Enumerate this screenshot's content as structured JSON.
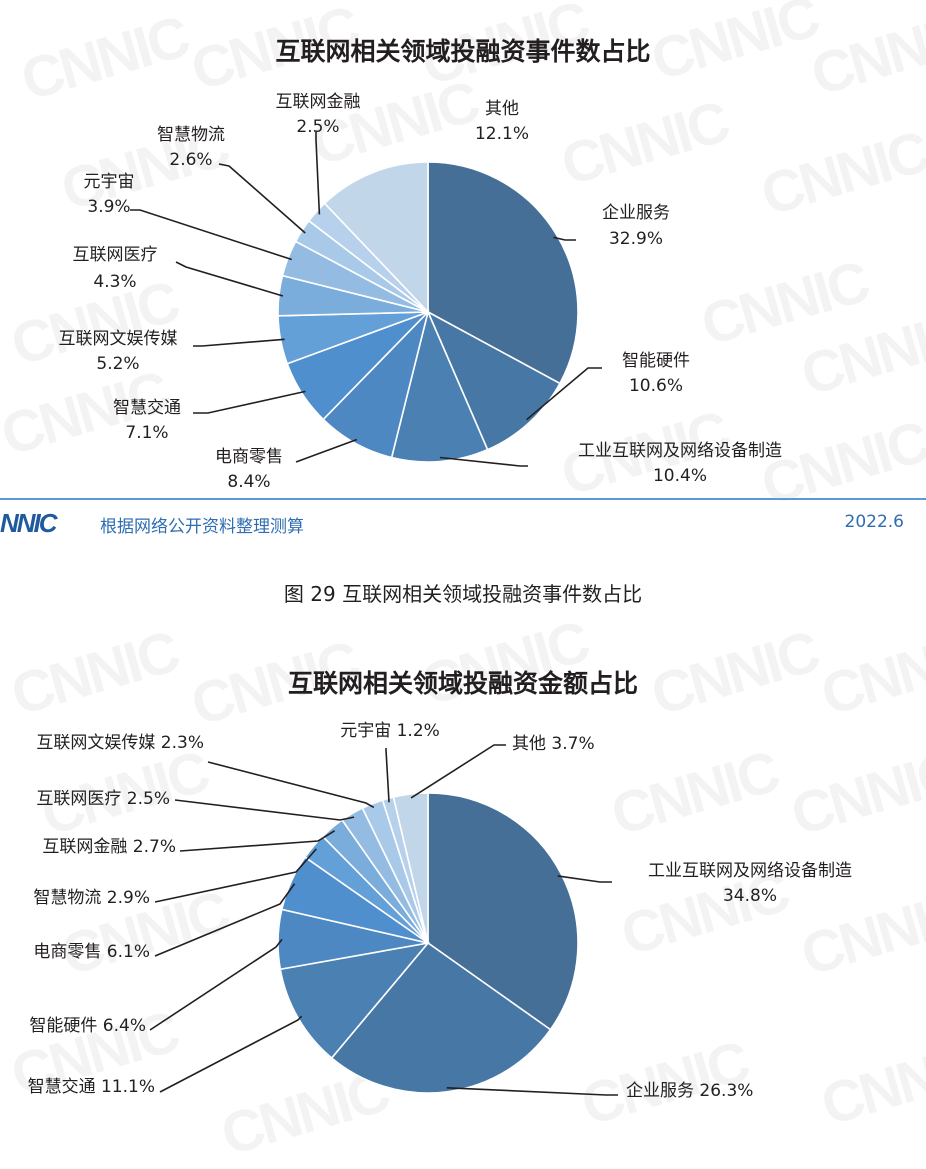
{
  "chart_data": [
    {
      "type": "pie",
      "title": "互联网相关领域投融资事件数占比",
      "categories": [
        "企业服务",
        "智能硬件",
        "工业互联网及网络设备制造",
        "电商零售",
        "智慧交通",
        "互联网文娱传媒",
        "互联网医疗",
        "元宇宙",
        "智慧物流",
        "互联网金融",
        "其他"
      ],
      "values": [
        32.9,
        10.6,
        10.4,
        8.4,
        7.1,
        5.2,
        4.3,
        3.9,
        2.6,
        2.5,
        12.1
      ],
      "labels": [
        "32.9%",
        "10.6%",
        "10.4%",
        "8.4%",
        "7.1%",
        "5.2%",
        "4.3%",
        "3.9%",
        "2.6%",
        "2.5%",
        "12.1%"
      ],
      "colors": [
        "#456f96",
        "#4677a5",
        "#4a80b2",
        "#4e88c2",
        "#508fce",
        "#64a0d8",
        "#7aacdc",
        "#94bce2",
        "#a8c9e8",
        "#b7d1ec",
        "#c2d6ea"
      ]
    },
    {
      "type": "pie",
      "title": "互联网相关领域投融资金额占比",
      "categories": [
        "工业互联网及网络设备制造",
        "企业服务",
        "智慧交通",
        "智能硬件",
        "电商零售",
        "智慧物流",
        "互联网金融",
        "互联网医疗",
        "互联网文娱传媒",
        "元宇宙",
        "其他"
      ],
      "values": [
        34.8,
        26.3,
        11.1,
        6.4,
        6.1,
        2.9,
        2.7,
        2.5,
        2.3,
        1.2,
        3.7
      ],
      "labels": [
        "34.8%",
        "26.3%",
        "11.1%",
        "6.4%",
        "6.1%",
        "2.9%",
        "2.7%",
        "2.5%",
        "2.3%",
        "1.2%",
        "3.7%"
      ],
      "colors": [
        "#456f96",
        "#4677a5",
        "#4a80b2",
        "#4e88c2",
        "#508fce",
        "#64a0d8",
        "#7aacdc",
        "#94bce2",
        "#a8c9e8",
        "#b7d1ec",
        "#c2d6ea"
      ]
    }
  ],
  "footer": {
    "logo": "NNIC",
    "source": "根据网络公开资料整理测算",
    "date": "2022.6"
  },
  "caption": "图 29  互联网相关领域投融资事件数占比",
  "watermark": "CNNIC"
}
